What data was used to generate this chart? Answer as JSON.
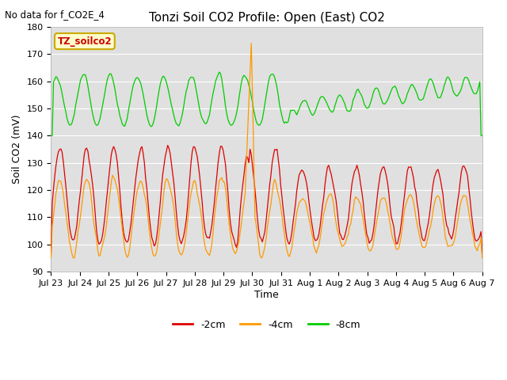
{
  "title": "Tonzi Soil CO2 Profile: Open (East) CO2",
  "subtitle": "No data for f_CO2E_4",
  "ylabel": "Soil CO2 (mV)",
  "xlabel": "Time",
  "ylim": [
    90,
    180
  ],
  "yticks": [
    90,
    100,
    110,
    120,
    130,
    140,
    150,
    160,
    170,
    180
  ],
  "x_labels": [
    "Jul 23",
    "Jul 24",
    "Jul 25",
    "Jul 26",
    "Jul 27",
    "Jul 28",
    "Jul 29",
    "Jul 30",
    "Jul 31",
    "Aug 1",
    "Aug 2",
    "Aug 3",
    "Aug 4",
    "Aug 5",
    "Aug 6",
    "Aug 7"
  ],
  "legend_labels": [
    "-2cm",
    "-4cm",
    "-8cm"
  ],
  "legend_colors": [
    "#dd0000",
    "#ff9900",
    "#00cc00"
  ],
  "line_colors": {
    "m2cm": "#dd0000",
    "m4cm": "#ff9900",
    "m8cm": "#00cc00"
  },
  "annotation_label": "TZ_soilco2",
  "annotation_bg": "#ffffcc",
  "annotation_border": "#ccaa00",
  "bg_color": "#e0e0e0",
  "title_fontsize": 11,
  "label_fontsize": 9,
  "tick_fontsize": 8
}
